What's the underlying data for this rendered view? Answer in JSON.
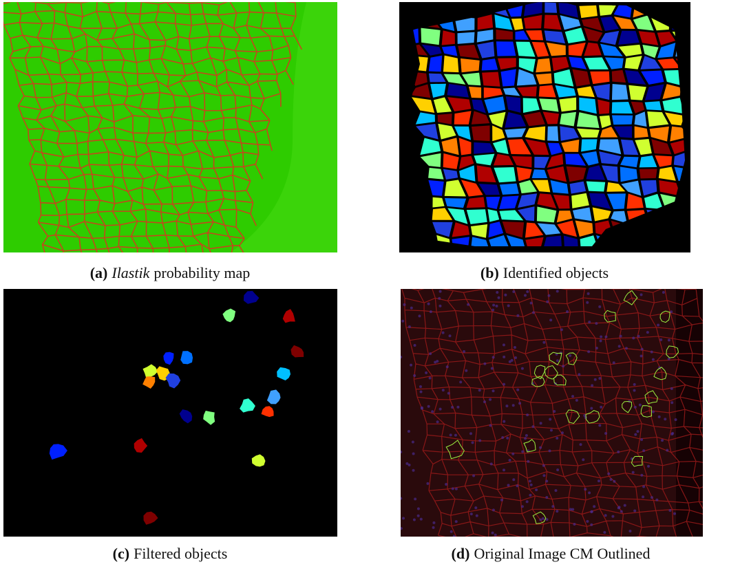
{
  "figure": {
    "panels": [
      {
        "label": "(a)",
        "caption": [
          {
            "text": "Ilastik",
            "italic": true
          },
          {
            "text": "probability map"
          }
        ]
      },
      {
        "label": "(b)",
        "caption": [
          {
            "text": "Identified objects"
          }
        ]
      },
      {
        "label": "(c)",
        "caption": [
          {
            "text": "Filtered objects"
          }
        ]
      },
      {
        "label": "(d)",
        "caption": [
          {
            "text": "Original Image CM Outlined"
          }
        ]
      }
    ]
  }
}
